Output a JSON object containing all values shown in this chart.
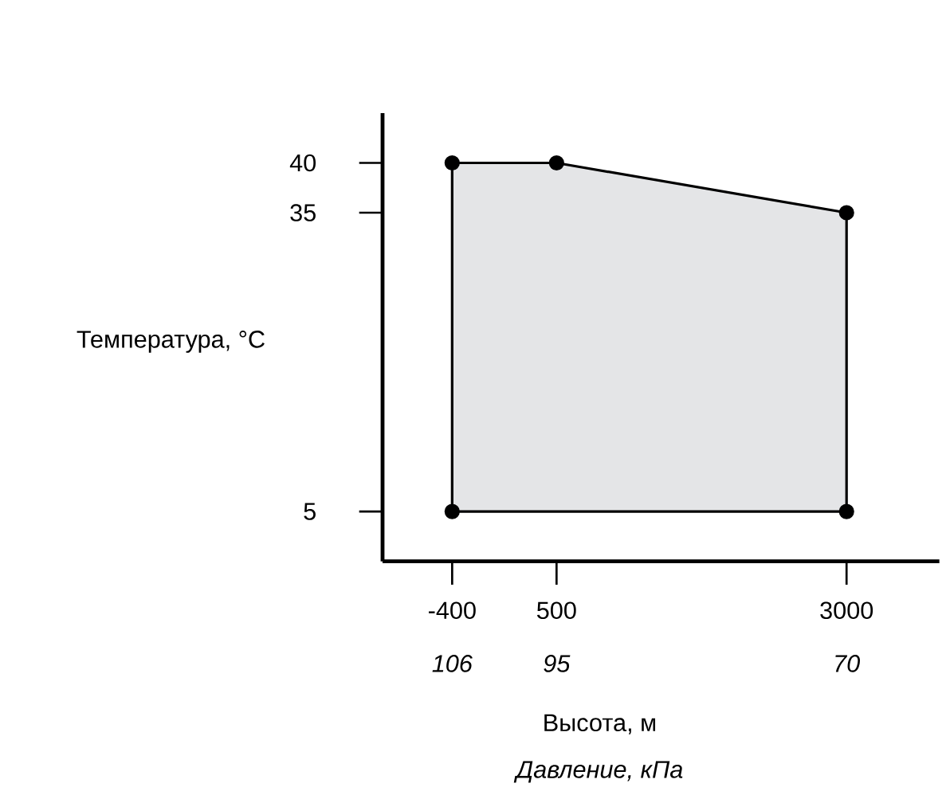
{
  "chart_data": {
    "type": "area",
    "xlabel": "Высота, м",
    "ylabel": "Температура, °C",
    "x": [
      -400,
      -400,
      500,
      3000,
      3000
    ],
    "series": [
      {
        "color": "#e4e5e7",
        "values": [
          5,
          40,
          40,
          35,
          5
        ]
      }
    ],
    "marker": "circle",
    "xlim": [
      -1000,
      3800
    ],
    "ylim": [
      0,
      45
    ],
    "xticks": [
      -400,
      500,
      3000
    ],
    "yticks": [
      5,
      35,
      40
    ],
    "annotations": [
      "106",
      "95",
      "70",
      "Давление, кПа"
    ]
  }
}
